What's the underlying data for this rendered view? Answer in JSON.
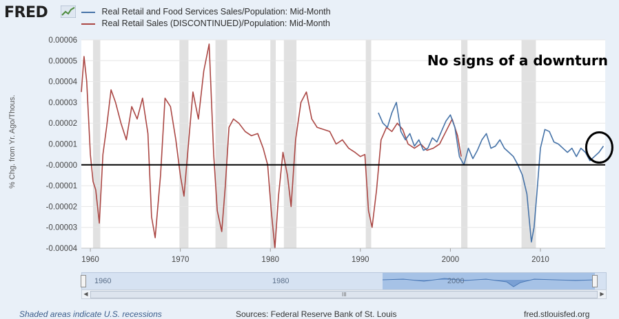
{
  "header": {
    "logo_text": "FRED",
    "logo_icon": "trend-chart-icon"
  },
  "chart_data": {
    "type": "line",
    "title": "",
    "ylabel": "% Chg. from Yr. Ago/Thous.",
    "xlabel": "",
    "ylim": [
      -4e-05,
      6e-05
    ],
    "xlim": [
      1959,
      2017.2
    ],
    "yticks": [
      "0.00006",
      "0.00005",
      "0.00004",
      "0.00003",
      "0.00002",
      "0.00001",
      "-0.00000",
      "-0.00001",
      "-0.00002",
      "-0.00003",
      "-0.00004"
    ],
    "ytick_values": [
      6e-05,
      5e-05,
      4e-05,
      3e-05,
      2e-05,
      1e-05,
      0,
      -1e-05,
      -2e-05,
      -3e-05,
      -4e-05
    ],
    "xticks": [
      "1960",
      "1970",
      "1980",
      "1990",
      "2000",
      "2010"
    ],
    "xtick_values": [
      1960,
      1970,
      1980,
      1990,
      2000,
      2010
    ],
    "recessions": [
      [
        1960.3,
        1961.1
      ],
      [
        1969.9,
        1970.9
      ],
      [
        1973.9,
        1975.2
      ],
      [
        1980.0,
        1980.6
      ],
      [
        1981.5,
        1982.9
      ],
      [
        1990.6,
        1991.2
      ],
      [
        2001.2,
        2001.9
      ],
      [
        2007.9,
        2009.5
      ]
    ],
    "zero_line": 0,
    "series": [
      {
        "name": "Real Retail and Food Services Sales/Population: Mid-Month",
        "color": "#4572a7",
        "x": [
          1992.0,
          1992.5,
          1993.0,
          1993.5,
          1994.0,
          1994.5,
          1995.0,
          1995.5,
          1996.0,
          1996.5,
          1997.0,
          1997.5,
          1998.0,
          1998.5,
          1999.0,
          1999.5,
          2000.0,
          2000.5,
          2001.0,
          2001.5,
          2002.0,
          2002.5,
          2003.0,
          2003.5,
          2004.0,
          2004.5,
          2005.0,
          2005.5,
          2006.0,
          2006.5,
          2007.0,
          2007.5,
          2008.0,
          2008.5,
          2008.8,
          2009.0,
          2009.3,
          2009.6,
          2010.0,
          2010.5,
          2011.0,
          2011.5,
          2012.0,
          2012.5,
          2013.0,
          2013.5,
          2014.0,
          2014.5,
          2015.0,
          2015.5,
          2016.0,
          2016.5,
          2017.0
        ],
        "y": [
          2.5e-05,
          2e-05,
          1.8e-05,
          2.5e-05,
          3e-05,
          1.6e-05,
          1.2e-05,
          1.5e-05,
          9e-06,
          1.2e-05,
          7e-06,
          8e-06,
          1.3e-05,
          1.1e-05,
          1.6e-05,
          2.1e-05,
          2.4e-05,
          1.8e-05,
          4e-06,
          0.0,
          8e-06,
          3e-06,
          7e-06,
          1.2e-05,
          1.5e-05,
          8e-06,
          9e-06,
          1.2e-05,
          8e-06,
          6e-06,
          4e-06,
          0.0,
          -5e-06,
          -1.4e-05,
          -2.8e-05,
          -3.7e-05,
          -3e-05,
          -1.4e-05,
          8e-06,
          1.7e-05,
          1.6e-05,
          1.1e-05,
          1e-05,
          8e-06,
          6e-06,
          8e-06,
          4e-06,
          8e-06,
          6e-06,
          2e-06,
          4e-06,
          6e-06,
          9e-06
        ]
      },
      {
        "name": "Real Retail Sales (DISCONTINUED)/Population: Mid-Month",
        "color": "#aa4643",
        "x": [
          1959.0,
          1959.3,
          1959.6,
          1960.0,
          1960.3,
          1960.6,
          1961.0,
          1961.4,
          1961.8,
          1962.3,
          1962.8,
          1963.4,
          1964.0,
          1964.6,
          1965.2,
          1965.8,
          1966.4,
          1966.8,
          1967.2,
          1967.8,
          1968.3,
          1968.9,
          1969.5,
          1970.0,
          1970.4,
          1970.9,
          1971.4,
          1972.0,
          1972.6,
          1973.2,
          1973.7,
          1974.1,
          1974.6,
          1975.0,
          1975.4,
          1975.9,
          1976.5,
          1977.2,
          1977.9,
          1978.6,
          1979.2,
          1979.7,
          1980.1,
          1980.5,
          1980.9,
          1981.4,
          1981.9,
          1982.3,
          1982.8,
          1983.4,
          1984.0,
          1984.6,
          1985.2,
          1985.9,
          1986.6,
          1987.3,
          1988.0,
          1988.7,
          1989.4,
          1990.0,
          1990.5,
          1990.9,
          1991.3,
          1991.8,
          1992.3,
          1992.9,
          1993.5,
          1994.1,
          1994.7,
          1995.3,
          1996.0,
          1996.7,
          1997.4,
          1998.1,
          1998.8,
          1999.5,
          2000.2,
          2000.8,
          2001.2
        ],
        "y": [
          3.5e-05,
          5.2e-05,
          4e-05,
          5e-06,
          -8e-06,
          -1.2e-05,
          -2.8e-05,
          5e-06,
          1.8e-05,
          3.6e-05,
          3e-05,
          2e-05,
          1.2e-05,
          2.8e-05,
          2.2e-05,
          3.2e-05,
          1.5e-05,
          -2.5e-05,
          -3.5e-05,
          -5e-06,
          3.2e-05,
          2.8e-05,
          1.2e-05,
          -5e-06,
          -1.5e-05,
          1e-05,
          3.5e-05,
          2.2e-05,
          4.5e-05,
          5.8e-05,
          5e-06,
          -2.2e-05,
          -3.2e-05,
          -1e-05,
          1.8e-05,
          2.2e-05,
          2e-05,
          1.6e-05,
          1.4e-05,
          1.5e-05,
          8e-06,
          0.0,
          -2.2e-05,
          -4e-05,
          -1.5e-05,
          6e-06,
          -5e-06,
          -2e-05,
          1.2e-05,
          3e-05,
          3.5e-05,
          2.2e-05,
          1.8e-05,
          1.7e-05,
          1.6e-05,
          1e-05,
          1.2e-05,
          8e-06,
          6e-06,
          4e-06,
          5e-06,
          -2.2e-05,
          -3e-05,
          -1.2e-05,
          1.2e-05,
          1.8e-05,
          1.6e-05,
          2e-05,
          1.7e-05,
          1e-05,
          8e-06,
          1e-05,
          7e-06,
          8e-06,
          1e-05,
          1.6e-05,
          2.2e-05,
          1.4e-05,
          4e-06
        ]
      }
    ],
    "annotation": "No signs of a downturn"
  },
  "navigator": {
    "labels": [
      "1960",
      "1980",
      "2000"
    ],
    "grip": "III"
  },
  "footer": {
    "recession_note": "Shaded areas indicate U.S. recessions",
    "sources": "Sources: Federal Reserve Bank of St. Louis",
    "site": "fred.stlouisfed.org"
  }
}
